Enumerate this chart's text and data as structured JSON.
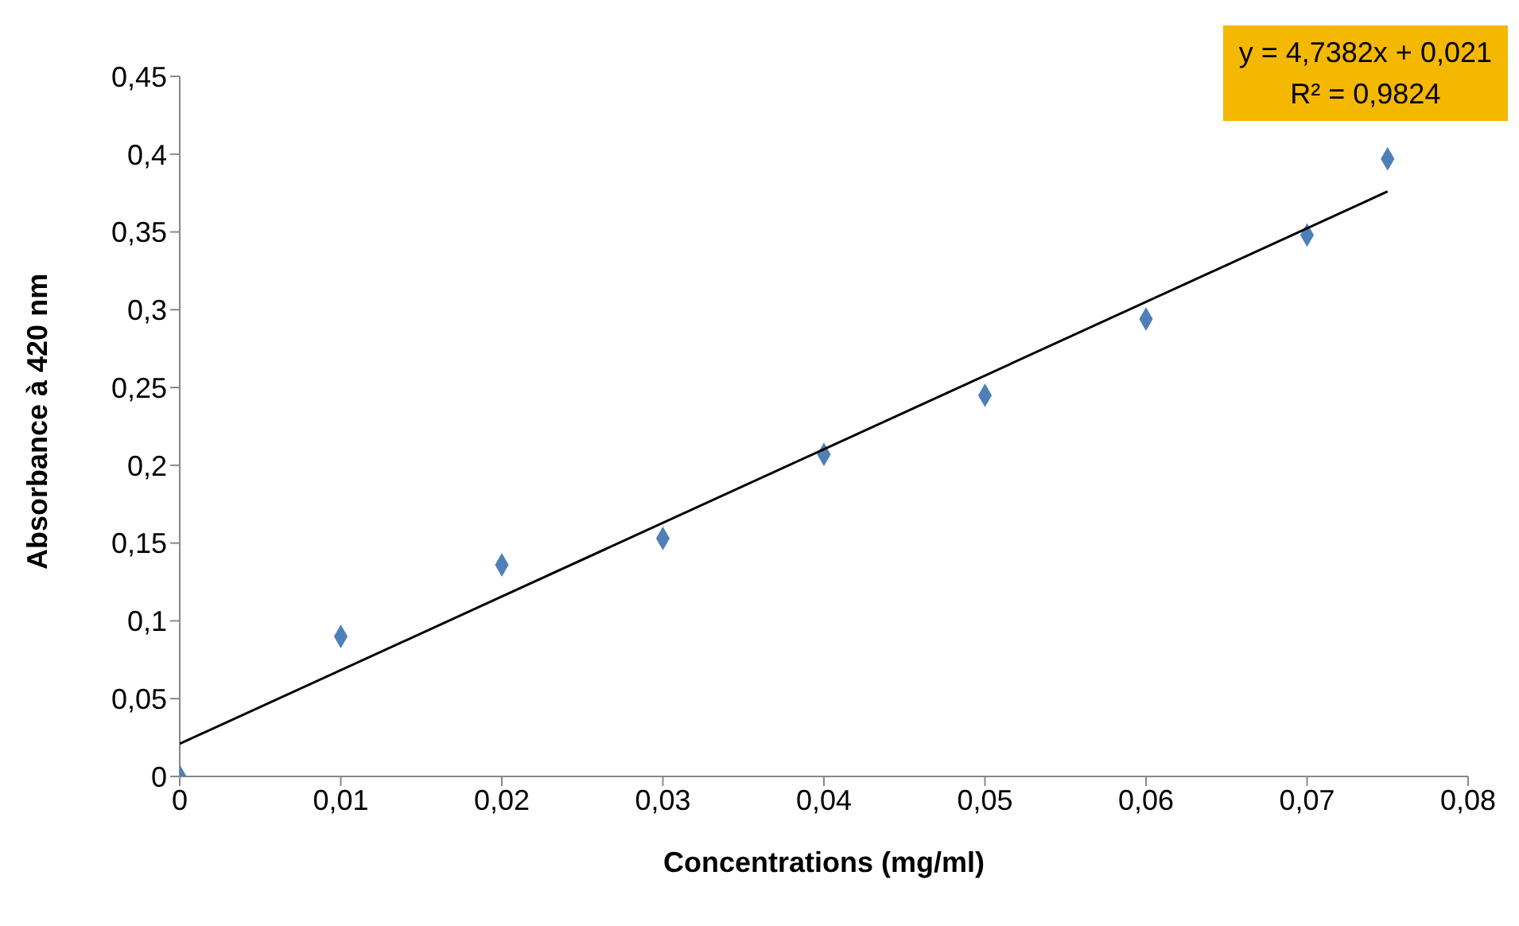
{
  "chart_data": {
    "type": "scatter",
    "xlabel": "Concentrations (mg/ml)",
    "ylabel": "Absorbance à 420 nm",
    "annotations": [
      "y = 4,7382x + 0,021",
      "R² = 0,9824"
    ],
    "series": [
      {
        "color": "#4f7fb8",
        "marker": "diamond",
        "x": [
          0,
          0.01,
          0.02,
          0.03,
          0.04,
          0.05,
          0.06,
          0.07,
          0.075
        ],
        "values": [
          0,
          0.09,
          0.136,
          0.153,
          0.207,
          0.245,
          0.294,
          0.348,
          0.397
        ]
      },
      {
        "type": "line",
        "color": "#000000",
        "marker": "none",
        "line_style": "solid",
        "x": [
          0,
          0.075
        ],
        "values": [
          0.021,
          0.376
        ]
      }
    ],
    "xlim": [
      0,
      0.08
    ],
    "xticks": [
      0,
      {
        "value": 0.01,
        "label": "0,01"
      },
      {
        "value": 0.02,
        "label": "0,02"
      },
      {
        "value": 0.03,
        "label": "0,03"
      },
      {
        "value": 0.04,
        "label": "0,04"
      },
      {
        "value": 0.05,
        "label": "0,05"
      },
      {
        "value": 0.06,
        "label": "0,06"
      },
      {
        "value": 0.07,
        "label": "0,07"
      },
      {
        "value": 0.08,
        "label": "0,08"
      }
    ],
    "ylim": [
      0,
      0.45
    ],
    "yticks": [
      0,
      {
        "value": 0.05,
        "label": "0,05"
      },
      {
        "value": 0.1,
        "label": "0,1"
      },
      {
        "value": 0.15,
        "label": "0,15"
      },
      {
        "value": 0.2,
        "label": "0,2"
      },
      {
        "value": 0.25,
        "label": "0,25"
      },
      {
        "value": 0.3,
        "label": "0,3"
      },
      {
        "value": 0.35,
        "label": "0,35"
      },
      {
        "value": 0.4,
        "label": "0,4"
      },
      {
        "value": 0.45,
        "label": "0,45"
      }
    ],
    "grid": false,
    "legend": false
  }
}
